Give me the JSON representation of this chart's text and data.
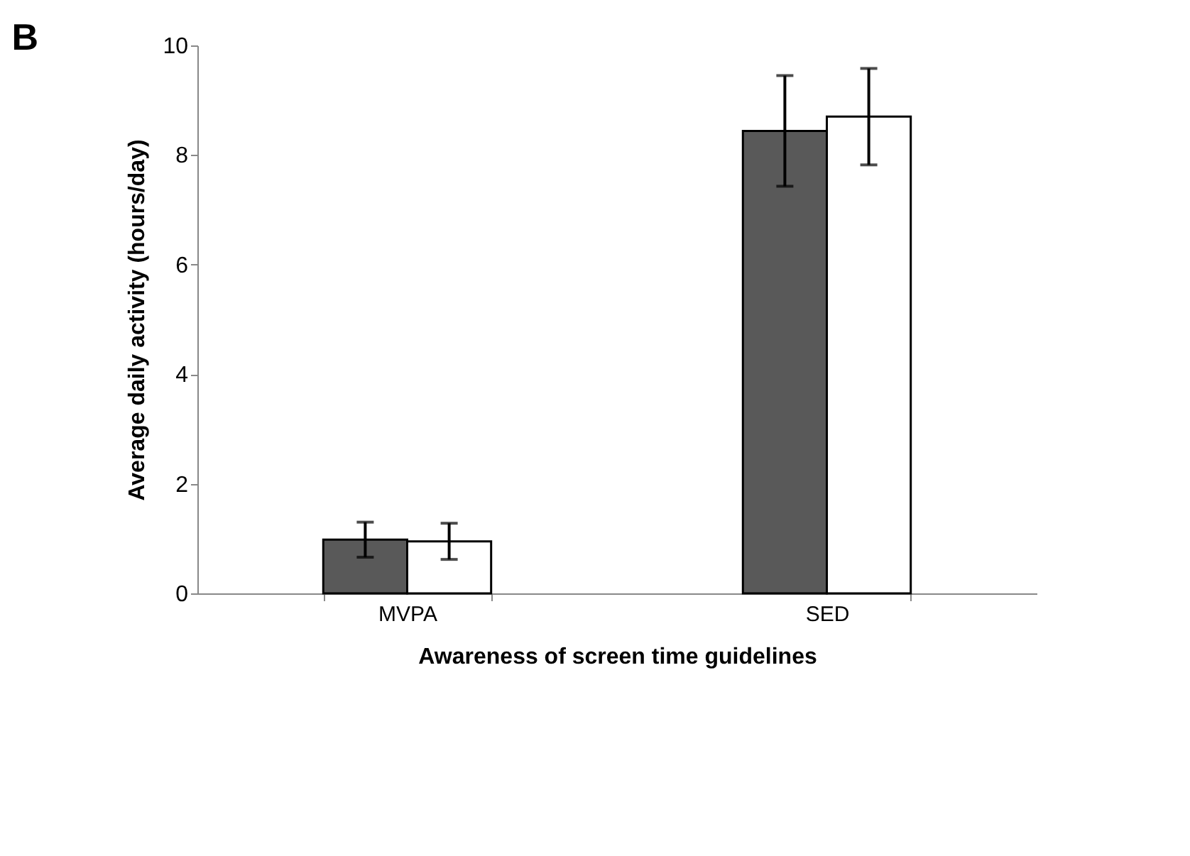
{
  "chart_data": {
    "type": "bar",
    "title": "B",
    "xlabel": "Awareness of screen time guidelines",
    "ylabel": "Average daily activity (hours/day)",
    "categories": [
      "MVPA",
      "SED"
    ],
    "series": [
      {
        "color": "#595959",
        "values": [
          0.98,
          8.44
        ],
        "errors": [
          0.32,
          1.01
        ]
      },
      {
        "color": "#ffffff",
        "values": [
          0.95,
          8.7
        ],
        "errors": [
          0.33,
          0.88
        ]
      }
    ],
    "ylim": [
      0,
      10
    ],
    "yticks": [
      0,
      2,
      4,
      6,
      8,
      10
    ],
    "grid": false,
    "legend": false
  }
}
